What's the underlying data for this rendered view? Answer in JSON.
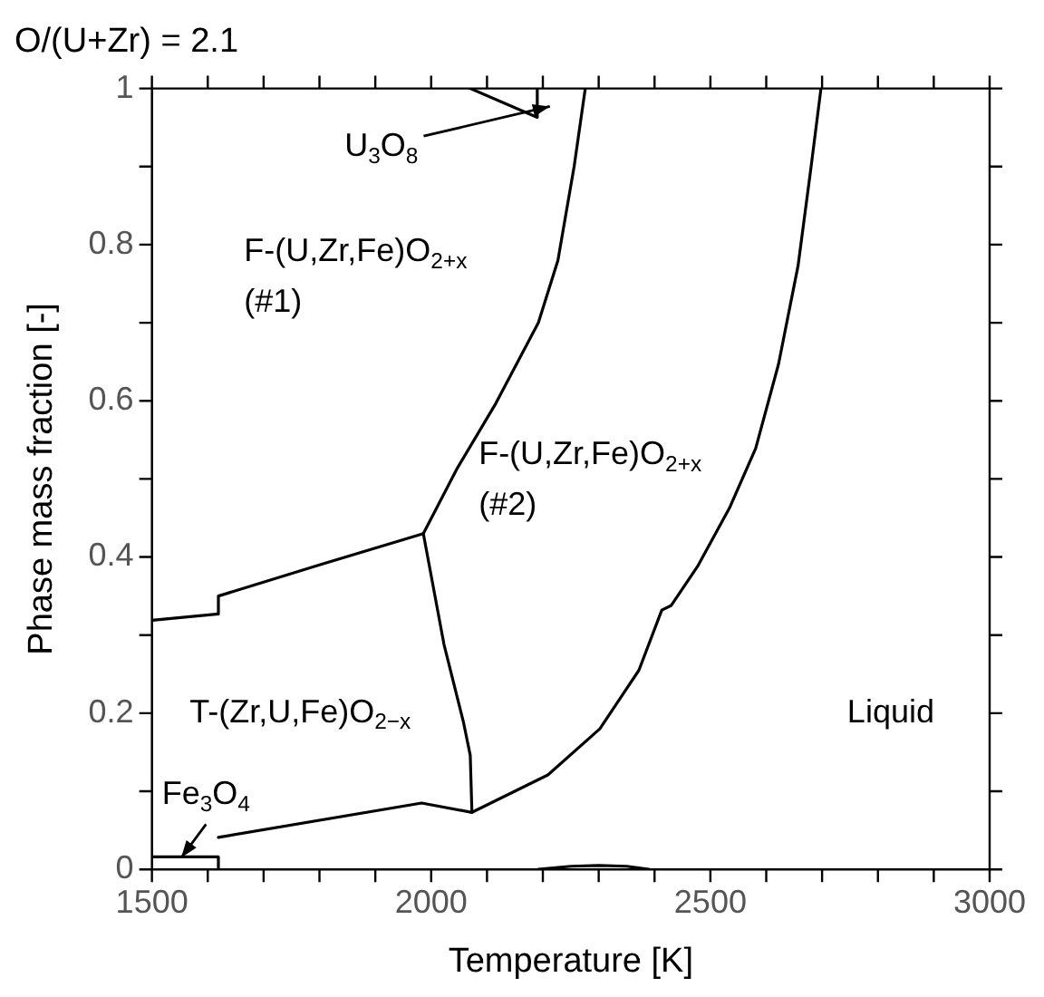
{
  "chart_data": {
    "type": "line",
    "title": "O/(U+Zr) = 2.1",
    "xlabel": "Temperature [K]",
    "ylabel": "Phase mass fraction [-]",
    "xlim": [
      1500,
      3000
    ],
    "ylim": [
      0,
      1
    ],
    "xticks": [
      1500,
      {
        "value": 1600,
        "label": null
      },
      {
        "value": 1700,
        "label": null
      },
      {
        "value": 1800,
        "label": null
      },
      {
        "value": 1900,
        "label": null
      },
      2000,
      {
        "value": 2100,
        "label": null
      },
      {
        "value": 2200,
        "label": null
      },
      {
        "value": 2300,
        "label": null
      },
      {
        "value": 2400,
        "label": null
      },
      2500,
      {
        "value": 2600,
        "label": null
      },
      {
        "value": 2700,
        "label": null
      },
      {
        "value": 2800,
        "label": null
      },
      {
        "value": 2900,
        "label": null
      },
      3000
    ],
    "yticks": [
      0,
      {
        "value": 0.1,
        "label": null
      },
      0.2,
      {
        "value": 0.3,
        "label": null
      },
      0.4,
      {
        "value": 0.5,
        "label": null
      },
      0.6,
      {
        "value": 0.7,
        "label": null
      },
      0.8,
      {
        "value": 0.9,
        "label": null
      },
      1
    ],
    "grid": false,
    "legend": false,
    "marker": "none",
    "line_style": "solid",
    "series": [
      {
        "color": "#000000",
        "x": [
          1500,
          1619,
          1619
        ],
        "values": [
          0.016,
          0.016,
          0
        ]
      },
      {
        "color": "#000000",
        "x": [
          1619,
          1983,
          2073
        ],
        "values": [
          0.041,
          0.085,
          0.073
        ]
      },
      {
        "color": "#000000",
        "x": [
          1500,
          1619,
          1619,
          1800,
          1986
        ],
        "values": [
          0.319,
          0.327,
          0.35,
          0.39,
          0.43
        ]
      },
      {
        "color": "#000000",
        "x": [
          1986,
          2023,
          2058,
          2070,
          2073
        ],
        "values": [
          0.43,
          0.288,
          0.188,
          0.146,
          0.073
        ]
      },
      {
        "color": "#000000",
        "x": [
          1986,
          2047,
          2116,
          2192,
          2227,
          2256,
          2276
        ],
        "values": [
          0.43,
          0.514,
          0.597,
          0.7,
          0.78,
          0.9,
          1
        ]
      },
      {
        "color": "#000000",
        "x": [
          2073,
          2209,
          2302,
          2372,
          2413,
          2430,
          2477,
          2535,
          2581,
          2622,
          2657,
          2680,
          2698
        ],
        "values": [
          0.073,
          0.121,
          0.18,
          0.255,
          0.332,
          0.338,
          0.388,
          0.464,
          0.539,
          0.647,
          0.773,
          0.898,
          1
        ]
      },
      {
        "color": "#000000",
        "x": [
          2070,
          2190,
          2190
        ],
        "values": [
          1,
          0.963,
          1
        ]
      },
      {
        "color": "#000000",
        "x": [
          2192,
          2250,
          2300,
          2350,
          2390
        ],
        "values": [
          0,
          0.004,
          0.005,
          0.004,
          0
        ]
      }
    ],
    "annotations": [
      "U$_{3}$O$_{8}$",
      "F-(U,Zr,Fe)O$_{2+x}$",
      "(#1)",
      "F-(U,Zr,Fe)O$_{2+x}$",
      "(#2)",
      "T-(Zr,U,Fe)O$_{2−x}$",
      "Fe$_{3}$O$_{4}$",
      "Liquid"
    ]
  }
}
